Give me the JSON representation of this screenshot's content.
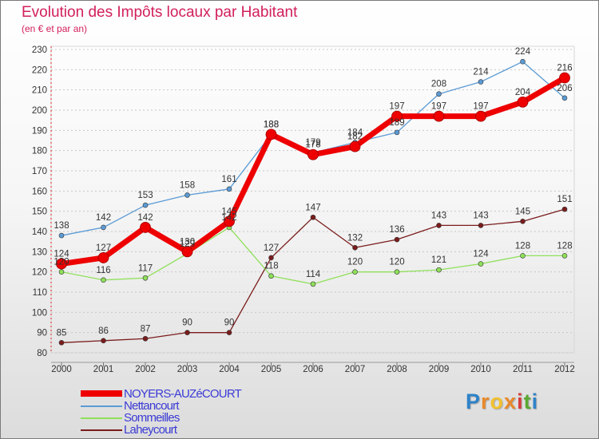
{
  "chart": {
    "title": "Evolution des Impôts locaux par Habitant",
    "subtitle": "(en € et par an)"
  },
  "chart_data": {
    "type": "line",
    "title": "Evolution des Impôts locaux par Habitant",
    "subtitle": "(en € et par an)",
    "xlabel": "",
    "ylabel": "",
    "x": [
      "2000",
      "2001",
      "2002",
      "2003",
      "2004",
      "2005",
      "2006",
      "2007",
      "2008",
      "2009",
      "2010",
      "2011",
      "2012"
    ],
    "yticks": [
      80,
      90,
      100,
      110,
      120,
      130,
      140,
      150,
      160,
      170,
      180,
      190,
      200,
      210,
      220,
      230
    ],
    "ylim": [
      80,
      230
    ],
    "grid": "horizontal dashed",
    "legend_position": "bottom-left",
    "series": [
      {
        "name": "NOYERS-AUZéCOURT",
        "color": "#ee0000",
        "values": [
          124,
          127,
          142,
          130,
          145,
          188,
          178,
          182,
          197,
          197,
          197,
          204,
          216
        ]
      },
      {
        "name": "Nettancourt",
        "color": "#5b9bd5",
        "values": [
          138,
          142,
          153,
          158,
          161,
          188,
          179,
          184,
          189,
          208,
          214,
          224,
          206
        ]
      },
      {
        "name": "Sommeilles",
        "color": "#8fe05a",
        "values": [
          120,
          116,
          117,
          129,
          142,
          118,
          114,
          120,
          120,
          121,
          124,
          128,
          128
        ]
      },
      {
        "name": "Laheycourt",
        "color": "#7b1c1c",
        "values": [
          85,
          86,
          87,
          90,
          90,
          127,
          147,
          132,
          136,
          143,
          143,
          145,
          151
        ]
      }
    ]
  },
  "legend": {
    "items": [
      "NOYERS-AUZéCOURT",
      "Nettancourt",
      "Sommeilles",
      "Laheycourt"
    ]
  },
  "logo": {
    "letters": [
      "P",
      "r",
      "o",
      "x",
      "i",
      "t",
      "i"
    ],
    "colors": [
      "#2f83c8",
      "#e9892a",
      "#f2c12e",
      "#e9892a",
      "#d63c3c",
      "#5aa832",
      "#2f83c8"
    ]
  }
}
